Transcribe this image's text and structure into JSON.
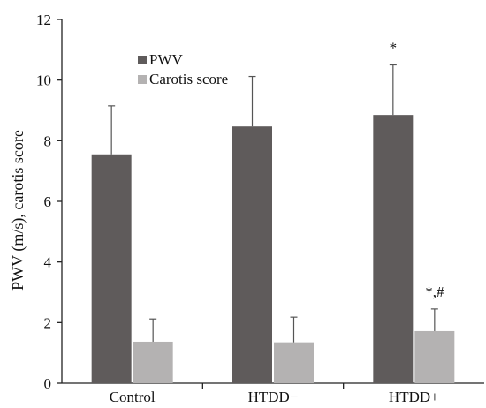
{
  "chart_data": {
    "type": "bar",
    "title": "",
    "xlabel": "",
    "ylabel": "PWV (m/s), carotis score",
    "categories": [
      "Control",
      "HTDD−",
      "HTDD+"
    ],
    "ylim": [
      0,
      12
    ],
    "yticks": [
      0,
      2,
      4,
      6,
      8,
      10,
      12
    ],
    "grid": false,
    "legend_position": "top-left",
    "series": [
      {
        "name": "PWV",
        "color": "#5f5b5b",
        "values": [
          7.55,
          8.47,
          8.85
        ],
        "errors": [
          1.6,
          1.65,
          1.65
        ]
      },
      {
        "name": "Carotis score",
        "color": "#b4b2b2",
        "values": [
          1.37,
          1.35,
          1.72
        ],
        "errors": [
          0.75,
          0.83,
          0.73
        ]
      }
    ],
    "annotations": [
      {
        "text": "*",
        "category": 2,
        "series": 0
      },
      {
        "text": "*,#",
        "category": 2,
        "series": 1
      }
    ]
  }
}
